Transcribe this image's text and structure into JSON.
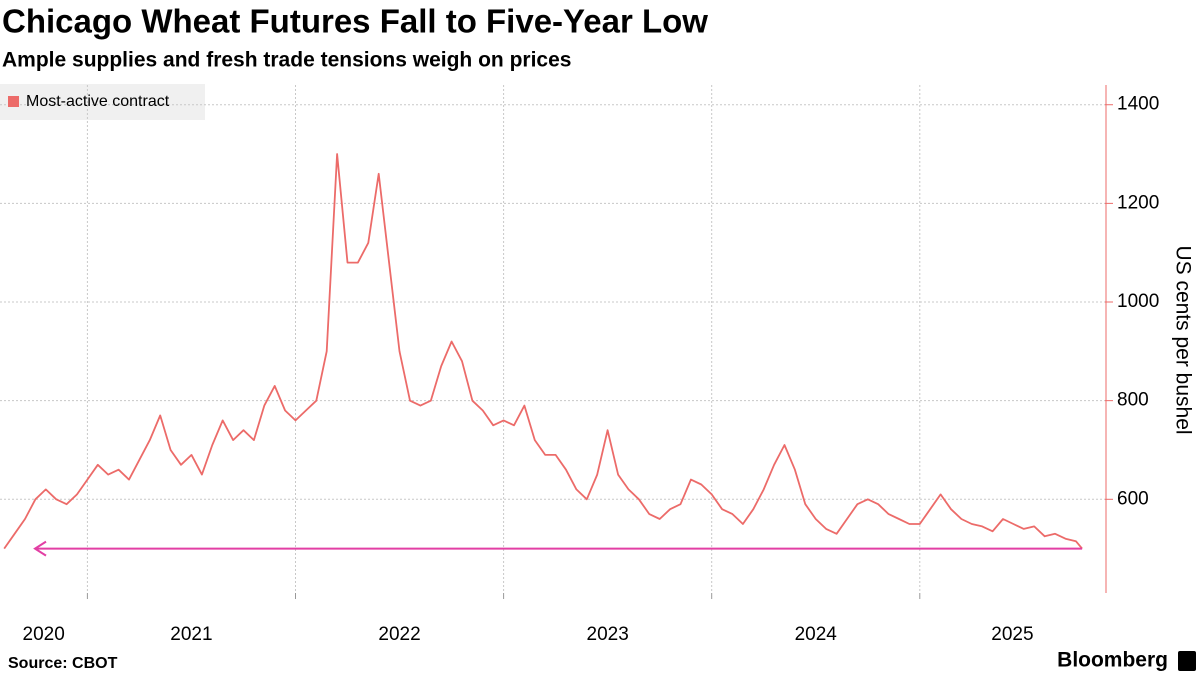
{
  "chart_data": {
    "type": "line",
    "title": "Chicago Wheat Futures Fall to Five-Year Low",
    "subtitle": "Ample supplies and fresh trade tensions weigh on prices",
    "y_axis_label": "US cents per bushel",
    "source": "Source: CBOT",
    "brand": "Bloomberg",
    "x": [
      2020.6,
      2020.65,
      2020.7,
      2020.75,
      2020.8,
      2020.85,
      2020.9,
      2020.95,
      2021.0,
      2021.05,
      2021.1,
      2021.15,
      2021.2,
      2021.25,
      2021.3,
      2021.35,
      2021.4,
      2021.45,
      2021.5,
      2021.55,
      2021.6,
      2021.65,
      2021.7,
      2021.75,
      2021.8,
      2021.85,
      2021.9,
      2021.95,
      2022.0,
      2022.05,
      2022.1,
      2022.15,
      2022.2,
      2022.25,
      2022.3,
      2022.35,
      2022.4,
      2022.45,
      2022.5,
      2022.55,
      2022.6,
      2022.65,
      2022.7,
      2022.75,
      2022.8,
      2022.85,
      2022.9,
      2022.95,
      2023.0,
      2023.05,
      2023.1,
      2023.15,
      2023.2,
      2023.25,
      2023.3,
      2023.35,
      2023.4,
      2023.45,
      2023.5,
      2023.55,
      2023.6,
      2023.65,
      2023.7,
      2023.75,
      2023.8,
      2023.85,
      2023.9,
      2023.95,
      2024.0,
      2024.05,
      2024.1,
      2024.15,
      2024.2,
      2024.25,
      2024.3,
      2024.35,
      2024.4,
      2024.45,
      2024.5,
      2024.55,
      2024.6,
      2024.65,
      2024.7,
      2024.75,
      2024.8,
      2024.85,
      2024.9,
      2024.95,
      2025.0,
      2025.05,
      2025.1,
      2025.15,
      2025.2,
      2025.25,
      2025.3,
      2025.35,
      2025.4,
      2025.45,
      2025.5,
      2025.55,
      2025.6,
      2025.65,
      2025.7,
      2025.75,
      2025.78
    ],
    "series": [
      {
        "name": "Most-active contract",
        "color": "#ec6b69",
        "values": [
          500,
          530,
          560,
          600,
          620,
          600,
          590,
          610,
          640,
          670,
          650,
          660,
          640,
          680,
          720,
          770,
          700,
          670,
          690,
          650,
          710,
          760,
          720,
          740,
          720,
          790,
          830,
          780,
          760,
          780,
          800,
          900,
          1300,
          1080,
          1080,
          1120,
          1260,
          1080,
          900,
          800,
          790,
          800,
          870,
          920,
          880,
          800,
          780,
          750,
          760,
          750,
          790,
          720,
          690,
          690,
          660,
          620,
          600,
          650,
          740,
          650,
          620,
          600,
          570,
          560,
          580,
          590,
          640,
          630,
          610,
          580,
          570,
          550,
          580,
          620,
          670,
          710,
          660,
          590,
          560,
          540,
          530,
          560,
          590,
          600,
          590,
          570,
          560,
          550,
          550,
          580,
          610,
          580,
          560,
          550,
          545,
          535,
          560,
          550,
          540,
          545,
          525,
          530,
          520,
          515,
          500
        ]
      }
    ],
    "reference_line": {
      "value": 500,
      "color": "#e23fa4"
    },
    "xlim": [
      2020.58,
      2025.89
    ],
    "xticks": [
      2020,
      2021,
      2022,
      2023,
      2024,
      2025
    ],
    "ylim": [
      410,
      1440
    ],
    "yticks": [
      600,
      800,
      1000,
      1200,
      1400
    ],
    "grid": true
  }
}
